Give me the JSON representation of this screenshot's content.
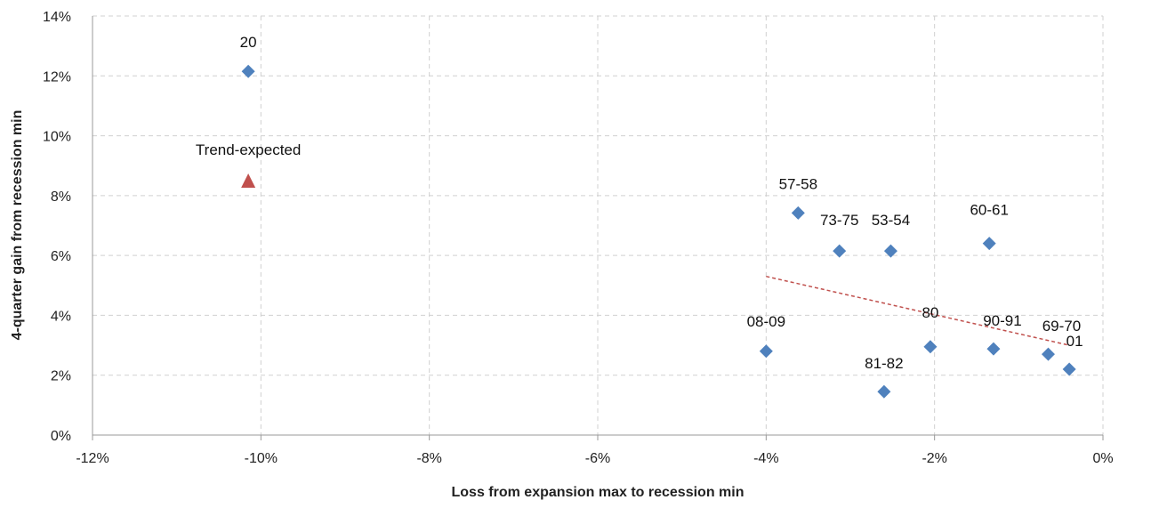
{
  "chart_data": {
    "type": "scatter",
    "xlabel": "Loss from expansion max to recession min",
    "ylabel": "4-quarter gain from recession min",
    "xlim": [
      -12,
      0
    ],
    "ylim": [
      0,
      14
    ],
    "x_ticks": [
      {
        "value": -12,
        "label": "-12%"
      },
      {
        "value": -10,
        "label": "-10%"
      },
      {
        "value": -8,
        "label": "-8%"
      },
      {
        "value": -6,
        "label": "-6%"
      },
      {
        "value": -4,
        "label": "-4%"
      },
      {
        "value": -2,
        "label": "-2%"
      },
      {
        "value": 0,
        "label": "0%"
      }
    ],
    "y_ticks": [
      {
        "value": 0,
        "label": "0%"
      },
      {
        "value": 2,
        "label": "2%"
      },
      {
        "value": 4,
        "label": "4%"
      },
      {
        "value": 6,
        "label": "6%"
      },
      {
        "value": 8,
        "label": "8%"
      },
      {
        "value": 10,
        "label": "10%"
      },
      {
        "value": 12,
        "label": "12%"
      },
      {
        "value": 14,
        "label": "14%"
      }
    ],
    "grid": true,
    "series": [
      {
        "marker": "diamond",
        "color": "#4f81bd",
        "points": [
          {
            "label": "20",
            "x": -10.15,
            "y": 12.15
          },
          {
            "label": "57-58",
            "x": -3.62,
            "y": 7.42
          },
          {
            "label": "73-75",
            "x": -3.13,
            "y": 6.15
          },
          {
            "label": "53-54",
            "x": -2.52,
            "y": 6.15
          },
          {
            "label": "60-61",
            "x": -1.35,
            "y": 6.4
          },
          {
            "label": "08-09",
            "x": -4.0,
            "y": 2.8
          },
          {
            "label": "81-82",
            "x": -2.6,
            "y": 1.45
          },
          {
            "label": "80",
            "x": -2.05,
            "y": 2.95
          },
          {
            "label": "90-91",
            "x": -1.3,
            "y": 2.88
          },
          {
            "label": "69-70",
            "x": -0.65,
            "y": 2.7
          },
          {
            "label": "01",
            "x": -0.4,
            "y": 2.2
          }
        ]
      },
      {
        "marker": "triangle",
        "color": "#c0504d",
        "points": [
          {
            "label": "Trend-expected",
            "x": -10.15,
            "y": 8.5
          }
        ]
      }
    ],
    "trendline": {
      "style": "dashed",
      "color": "#c0504d",
      "from": {
        "x": -4.0,
        "y": 5.3
      },
      "to": {
        "x": -0.4,
        "y": 3.0
      }
    }
  }
}
